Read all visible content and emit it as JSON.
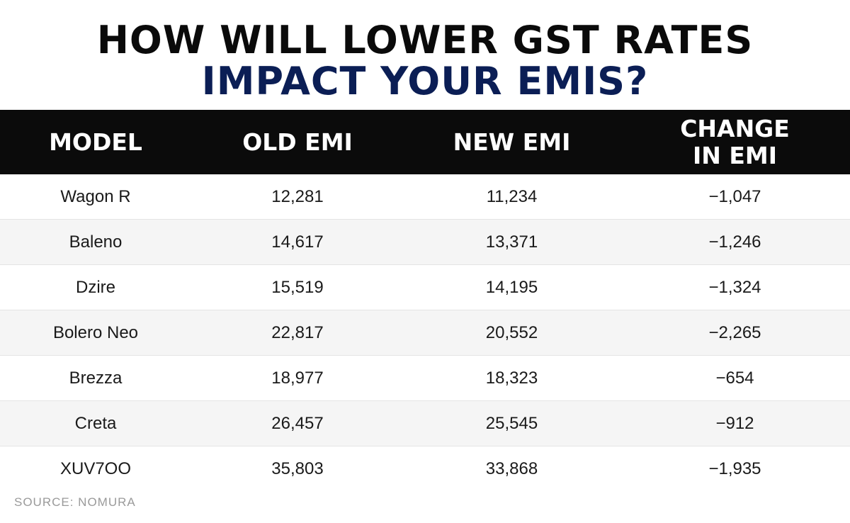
{
  "chart_data": {
    "type": "table",
    "title": "HOW WILL LOWER GST RATES",
    "subtitle": "IMPACT YOUR EMIS?",
    "columns": [
      "MODEL",
      "OLD EMI",
      "NEW EMI",
      "CHANGE IN EMI"
    ],
    "rows": [
      {
        "model": "Wagon R",
        "old_emi": "12,281",
        "new_emi": "11,234",
        "change": "−1,047"
      },
      {
        "model": "Baleno",
        "old_emi": "14,617",
        "new_emi": "13,371",
        "change": "−1,246"
      },
      {
        "model": "Dzire",
        "old_emi": "15,519",
        "new_emi": "14,195",
        "change": "−1,324"
      },
      {
        "model": "Bolero Neo",
        "old_emi": "22,817",
        "new_emi": "20,552",
        "change": "−2,265"
      },
      {
        "model": "Brezza",
        "old_emi": "18,977",
        "new_emi": "18,323",
        "change": "−654"
      },
      {
        "model": "Creta",
        "old_emi": "26,457",
        "new_emi": "25,545",
        "change": "−912"
      },
      {
        "model": "XUV7OO",
        "old_emi": "35,803",
        "new_emi": "33,868",
        "change": "−1,935"
      }
    ],
    "source": "SOURCE: NOMURA"
  },
  "colors": {
    "title": "#0a0a0a",
    "subtitle": "#0b1e55",
    "header_bg": "#0b0b0b",
    "header_text": "#ffffff",
    "row_alt": "#f5f5f5",
    "source_text": "#9a9a9a"
  }
}
